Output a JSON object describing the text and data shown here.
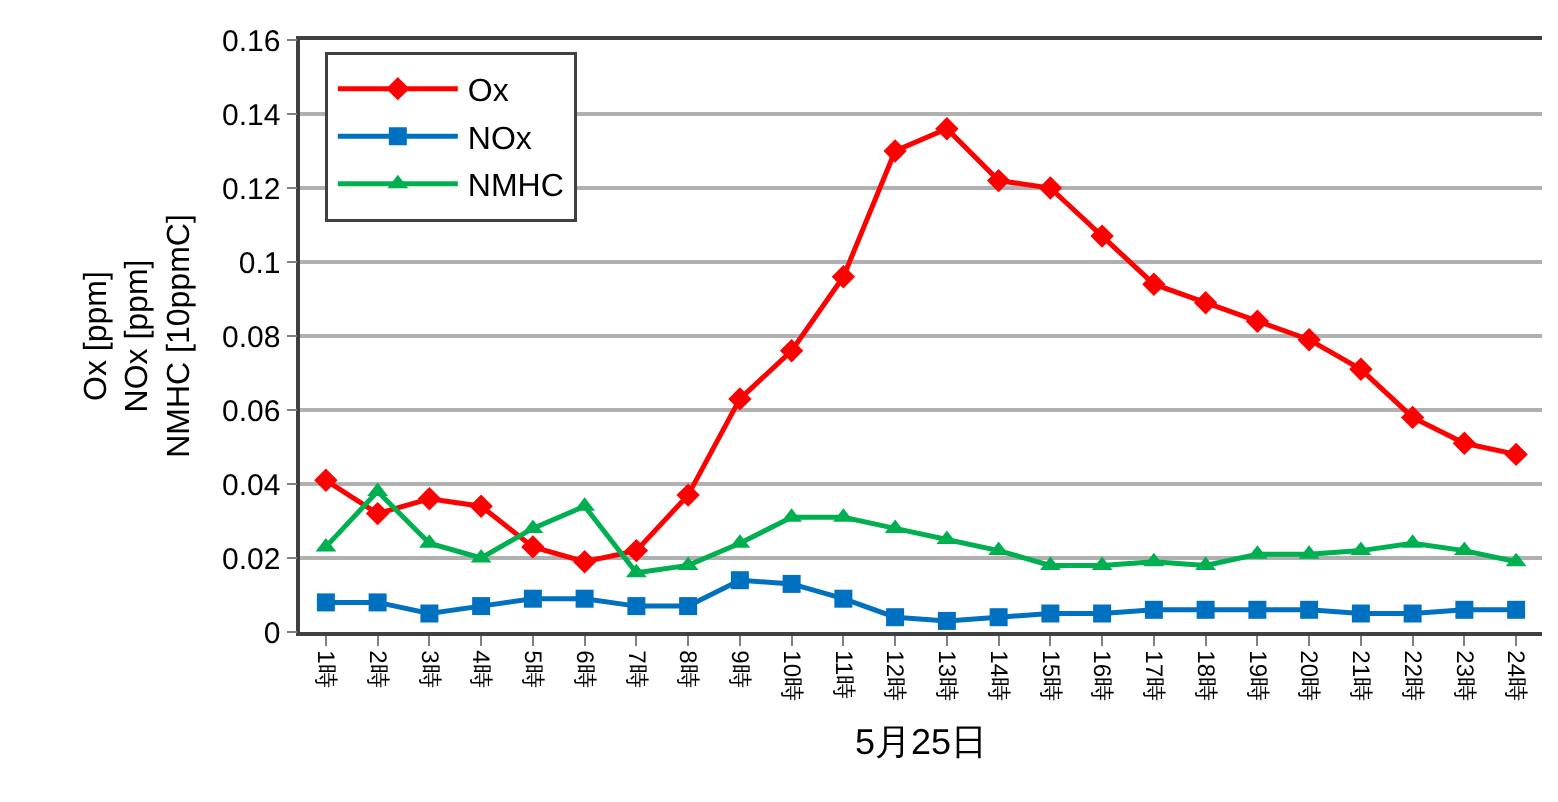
{
  "chart_data": {
    "type": "line",
    "xlabel": "5月25日",
    "ylabel": "Ox [ppm]\nNOx [ppm]\nNMHC [10ppmC]",
    "categories": [
      "1時",
      "2時",
      "3時",
      "4時",
      "5時",
      "6時",
      "7時",
      "8時",
      "9時",
      "10時",
      "11時",
      "12時",
      "13時",
      "14時",
      "15時",
      "16時",
      "17時",
      "18時",
      "19時",
      "20時",
      "21時",
      "22時",
      "23時",
      "24時"
    ],
    "series": [
      {
        "name": "Ox",
        "color": "#ff0000",
        "marker": "diamond",
        "values": [
          0.041,
          0.032,
          0.036,
          0.034,
          0.023,
          0.019,
          0.022,
          0.037,
          0.063,
          0.076,
          0.096,
          0.13,
          0.136,
          0.122,
          0.12,
          0.107,
          0.094,
          0.089,
          0.084,
          0.079,
          0.071,
          0.058,
          0.051,
          0.048
        ]
      },
      {
        "name": "NOx",
        "color": "#0070c0",
        "marker": "square",
        "values": [
          0.008,
          0.008,
          0.005,
          0.007,
          0.009,
          0.009,
          0.007,
          0.007,
          0.014,
          0.013,
          0.009,
          0.004,
          0.003,
          0.004,
          0.005,
          0.005,
          0.006,
          0.006,
          0.006,
          0.006,
          0.005,
          0.005,
          0.006,
          0.006
        ]
      },
      {
        "name": "NMHC",
        "color": "#00b050",
        "marker": "triangle",
        "values": [
          0.023,
          0.038,
          0.024,
          0.02,
          0.028,
          0.034,
          0.016,
          0.018,
          0.024,
          0.031,
          0.031,
          0.028,
          0.025,
          0.022,
          0.018,
          0.018,
          0.019,
          0.018,
          0.021,
          0.021,
          0.022,
          0.024,
          0.022,
          0.019
        ]
      }
    ],
    "ylim": [
      0,
      0.16
    ],
    "yticks": [
      0,
      0.02,
      0.04,
      0.06,
      0.08,
      {
        "value": 0.1,
        "label": "0.1"
      },
      0.12,
      0.14,
      0.16
    ],
    "grid": "y",
    "legend": "top left",
    "line_style": "solid"
  }
}
